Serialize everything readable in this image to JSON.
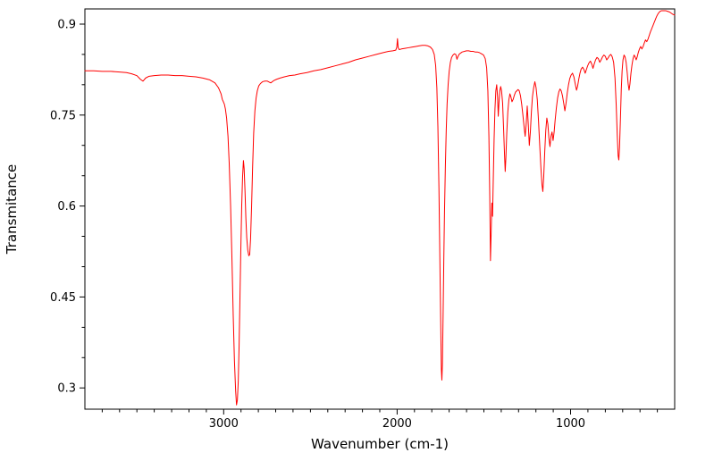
{
  "figure": {
    "background": "#ffffff",
    "axis_color": "#000000"
  },
  "chart_data": {
    "type": "line",
    "title": "",
    "xlabel": "Wavenumber (cm-1)",
    "ylabel": "Transmitance",
    "line_color": "#ff0000",
    "x_reversed": true,
    "xlim": [
      3800,
      400
    ],
    "ylim": [
      0.265,
      0.925
    ],
    "xticks": [
      {
        "value": 3000,
        "label": "3000"
      },
      {
        "value": 2000,
        "label": "2000"
      },
      {
        "value": 1000,
        "label": "1000"
      }
    ],
    "yticks": [
      {
        "value": 0.3,
        "label": "0.3"
      },
      {
        "value": 0.45,
        "label": "0.45"
      },
      {
        "value": 0.6,
        "label": "0.6"
      },
      {
        "value": 0.75,
        "label": "0.75"
      },
      {
        "value": 0.9,
        "label": "0.9"
      }
    ],
    "xtick_minor_step": 100,
    "ytick_minor_step": 0.05,
    "grid": false,
    "legend": false,
    "points": [
      [
        3800,
        0.823
      ],
      [
        3750,
        0.823
      ],
      [
        3700,
        0.822
      ],
      [
        3650,
        0.822
      ],
      [
        3600,
        0.821
      ],
      [
        3560,
        0.82
      ],
      [
        3530,
        0.818
      ],
      [
        3500,
        0.815
      ],
      [
        3480,
        0.809
      ],
      [
        3465,
        0.806
      ],
      [
        3450,
        0.811
      ],
      [
        3430,
        0.814
      ],
      [
        3400,
        0.815
      ],
      [
        3360,
        0.816
      ],
      [
        3320,
        0.816
      ],
      [
        3280,
        0.815
      ],
      [
        3240,
        0.815
      ],
      [
        3200,
        0.814
      ],
      [
        3160,
        0.813
      ],
      [
        3120,
        0.811
      ],
      [
        3080,
        0.808
      ],
      [
        3050,
        0.803
      ],
      [
        3030,
        0.795
      ],
      [
        3015,
        0.785
      ],
      [
        3008,
        0.776
      ],
      [
        3002,
        0.772
      ],
      [
        2996,
        0.768
      ],
      [
        2990,
        0.76
      ],
      [
        2983,
        0.745
      ],
      [
        2975,
        0.715
      ],
      [
        2968,
        0.67
      ],
      [
        2960,
        0.6
      ],
      [
        2952,
        0.51
      ],
      [
        2945,
        0.42
      ],
      [
        2938,
        0.345
      ],
      [
        2931,
        0.295
      ],
      [
        2926,
        0.272
      ],
      [
        2921,
        0.28
      ],
      [
        2916,
        0.31
      ],
      [
        2911,
        0.37
      ],
      [
        2906,
        0.45
      ],
      [
        2901,
        0.53
      ],
      [
        2896,
        0.6
      ],
      [
        2891,
        0.648
      ],
      [
        2886,
        0.675
      ],
      [
        2882,
        0.662
      ],
      [
        2877,
        0.625
      ],
      [
        2872,
        0.58
      ],
      [
        2867,
        0.548
      ],
      [
        2861,
        0.527
      ],
      [
        2855,
        0.518
      ],
      [
        2850,
        0.52
      ],
      [
        2845,
        0.545
      ],
      [
        2839,
        0.6
      ],
      [
        2833,
        0.665
      ],
      [
        2827,
        0.72
      ],
      [
        2820,
        0.757
      ],
      [
        2813,
        0.778
      ],
      [
        2806,
        0.79
      ],
      [
        2798,
        0.798
      ],
      [
        2788,
        0.802
      ],
      [
        2776,
        0.805
      ],
      [
        2762,
        0.806
      ],
      [
        2748,
        0.806
      ],
      [
        2735,
        0.804
      ],
      [
        2728,
        0.803
      ],
      [
        2720,
        0.805
      ],
      [
        2710,
        0.807
      ],
      [
        2695,
        0.809
      ],
      [
        2675,
        0.811
      ],
      [
        2650,
        0.813
      ],
      [
        2620,
        0.815
      ],
      [
        2590,
        0.816
      ],
      [
        2560,
        0.818
      ],
      [
        2520,
        0.82
      ],
      [
        2480,
        0.823
      ],
      [
        2440,
        0.825
      ],
      [
        2400,
        0.828
      ],
      [
        2360,
        0.831
      ],
      [
        2320,
        0.834
      ],
      [
        2280,
        0.837
      ],
      [
        2240,
        0.841
      ],
      [
        2200,
        0.844
      ],
      [
        2160,
        0.847
      ],
      [
        2120,
        0.85
      ],
      [
        2080,
        0.853
      ],
      [
        2050,
        0.855
      ],
      [
        2025,
        0.856
      ],
      [
        2008,
        0.857
      ],
      [
        2002,
        0.862
      ],
      [
        1998,
        0.876
      ],
      [
        1994,
        0.861
      ],
      [
        1988,
        0.858
      ],
      [
        1975,
        0.859
      ],
      [
        1955,
        0.86
      ],
      [
        1935,
        0.861
      ],
      [
        1915,
        0.862
      ],
      [
        1895,
        0.863
      ],
      [
        1875,
        0.864
      ],
      [
        1855,
        0.865
      ],
      [
        1838,
        0.865
      ],
      [
        1822,
        0.864
      ],
      [
        1808,
        0.862
      ],
      [
        1796,
        0.858
      ],
      [
        1786,
        0.85
      ],
      [
        1778,
        0.832
      ],
      [
        1771,
        0.795
      ],
      [
        1765,
        0.73
      ],
      [
        1759,
        0.63
      ],
      [
        1754,
        0.52
      ],
      [
        1749,
        0.41
      ],
      [
        1745,
        0.33
      ],
      [
        1742,
        0.313
      ],
      [
        1739,
        0.34
      ],
      [
        1735,
        0.42
      ],
      [
        1731,
        0.51
      ],
      [
        1727,
        0.59
      ],
      [
        1722,
        0.665
      ],
      [
        1717,
        0.725
      ],
      [
        1712,
        0.768
      ],
      [
        1706,
        0.8
      ],
      [
        1700,
        0.822
      ],
      [
        1693,
        0.837
      ],
      [
        1686,
        0.845
      ],
      [
        1678,
        0.849
      ],
      [
        1670,
        0.851
      ],
      [
        1662,
        0.85
      ],
      [
        1655,
        0.842
      ],
      [
        1650,
        0.846
      ],
      [
        1643,
        0.85
      ],
      [
        1635,
        0.852
      ],
      [
        1625,
        0.854
      ],
      [
        1612,
        0.855
      ],
      [
        1600,
        0.856
      ],
      [
        1588,
        0.856
      ],
      [
        1575,
        0.855
      ],
      [
        1562,
        0.855
      ],
      [
        1550,
        0.854
      ],
      [
        1538,
        0.854
      ],
      [
        1526,
        0.853
      ],
      [
        1514,
        0.851
      ],
      [
        1502,
        0.849
      ],
      [
        1492,
        0.843
      ],
      [
        1484,
        0.828
      ],
      [
        1477,
        0.79
      ],
      [
        1471,
        0.715
      ],
      [
        1466,
        0.615
      ],
      [
        1462,
        0.51
      ],
      [
        1458,
        0.555
      ],
      [
        1454,
        0.605
      ],
      [
        1450,
        0.583
      ],
      [
        1446,
        0.64
      ],
      [
        1441,
        0.71
      ],
      [
        1436,
        0.76
      ],
      [
        1431,
        0.79
      ],
      [
        1426,
        0.8
      ],
      [
        1421,
        0.78
      ],
      [
        1417,
        0.748
      ],
      [
        1413,
        0.77
      ],
      [
        1408,
        0.79
      ],
      [
        1403,
        0.797
      ],
      [
        1398,
        0.79
      ],
      [
        1392,
        0.77
      ],
      [
        1386,
        0.725
      ],
      [
        1381,
        0.685
      ],
      [
        1377,
        0.657
      ],
      [
        1373,
        0.68
      ],
      [
        1368,
        0.72
      ],
      [
        1362,
        0.755
      ],
      [
        1356,
        0.775
      ],
      [
        1350,
        0.785
      ],
      [
        1344,
        0.78
      ],
      [
        1338,
        0.772
      ],
      [
        1331,
        0.776
      ],
      [
        1324,
        0.783
      ],
      [
        1317,
        0.788
      ],
      [
        1310,
        0.79
      ],
      [
        1303,
        0.792
      ],
      [
        1296,
        0.79
      ],
      [
        1289,
        0.782
      ],
      [
        1282,
        0.768
      ],
      [
        1275,
        0.75
      ],
      [
        1268,
        0.73
      ],
      [
        1262,
        0.715
      ],
      [
        1256,
        0.735
      ],
      [
        1250,
        0.765
      ],
      [
        1244,
        0.735
      ],
      [
        1238,
        0.7
      ],
      [
        1232,
        0.722
      ],
      [
        1226,
        0.755
      ],
      [
        1220,
        0.78
      ],
      [
        1213,
        0.795
      ],
      [
        1206,
        0.805
      ],
      [
        1199,
        0.795
      ],
      [
        1192,
        0.775
      ],
      [
        1185,
        0.74
      ],
      [
        1178,
        0.7
      ],
      [
        1171,
        0.662
      ],
      [
        1165,
        0.635
      ],
      [
        1160,
        0.624
      ],
      [
        1155,
        0.648
      ],
      [
        1149,
        0.69
      ],
      [
        1143,
        0.725
      ],
      [
        1137,
        0.745
      ],
      [
        1131,
        0.735
      ],
      [
        1125,
        0.712
      ],
      [
        1119,
        0.698
      ],
      [
        1113,
        0.715
      ],
      [
        1107,
        0.722
      ],
      [
        1101,
        0.708
      ],
      [
        1095,
        0.722
      ],
      [
        1089,
        0.742
      ],
      [
        1082,
        0.762
      ],
      [
        1075,
        0.778
      ],
      [
        1068,
        0.788
      ],
      [
        1061,
        0.793
      ],
      [
        1054,
        0.79
      ],
      [
        1047,
        0.782
      ],
      [
        1040,
        0.77
      ],
      [
        1033,
        0.757
      ],
      [
        1026,
        0.77
      ],
      [
        1019,
        0.787
      ],
      [
        1012,
        0.8
      ],
      [
        1005,
        0.81
      ],
      [
        997,
        0.816
      ],
      [
        989,
        0.819
      ],
      [
        981,
        0.813
      ],
      [
        973,
        0.801
      ],
      [
        966,
        0.791
      ],
      [
        960,
        0.797
      ],
      [
        953,
        0.809
      ],
      [
        946,
        0.819
      ],
      [
        939,
        0.826
      ],
      [
        931,
        0.829
      ],
      [
        923,
        0.825
      ],
      [
        916,
        0.819
      ],
      [
        909,
        0.825
      ],
      [
        902,
        0.831
      ],
      [
        894,
        0.836
      ],
      [
        886,
        0.839
      ],
      [
        878,
        0.834
      ],
      [
        871,
        0.827
      ],
      [
        864,
        0.834
      ],
      [
        856,
        0.841
      ],
      [
        848,
        0.845
      ],
      [
        840,
        0.843
      ],
      [
        832,
        0.837
      ],
      [
        824,
        0.841
      ],
      [
        816,
        0.846
      ],
      [
        808,
        0.849
      ],
      [
        800,
        0.847
      ],
      [
        792,
        0.841
      ],
      [
        784,
        0.844
      ],
      [
        776,
        0.848
      ],
      [
        768,
        0.85
      ],
      [
        760,
        0.846
      ],
      [
        752,
        0.837
      ],
      [
        744,
        0.811
      ],
      [
        737,
        0.766
      ],
      [
        731,
        0.716
      ],
      [
        726,
        0.683
      ],
      [
        722,
        0.676
      ],
      [
        718,
        0.696
      ],
      [
        713,
        0.741
      ],
      [
        708,
        0.791
      ],
      [
        703,
        0.823
      ],
      [
        698,
        0.841
      ],
      [
        692,
        0.849
      ],
      [
        686,
        0.846
      ],
      [
        680,
        0.837
      ],
      [
        674,
        0.821
      ],
      [
        668,
        0.801
      ],
      [
        663,
        0.791
      ],
      [
        658,
        0.801
      ],
      [
        652,
        0.819
      ],
      [
        646,
        0.833
      ],
      [
        640,
        0.843
      ],
      [
        634,
        0.849
      ],
      [
        628,
        0.846
      ],
      [
        622,
        0.841
      ],
      [
        616,
        0.846
      ],
      [
        610,
        0.853
      ],
      [
        603,
        0.859
      ],
      [
        596,
        0.863
      ],
      [
        589,
        0.859
      ],
      [
        582,
        0.863
      ],
      [
        575,
        0.869
      ],
      [
        568,
        0.874
      ],
      [
        561,
        0.871
      ],
      [
        554,
        0.875
      ],
      [
        547,
        0.881
      ],
      [
        540,
        0.887
      ],
      [
        533,
        0.892
      ],
      [
        526,
        0.897
      ],
      [
        519,
        0.902
      ],
      [
        512,
        0.907
      ],
      [
        505,
        0.912
      ],
      [
        498,
        0.916
      ],
      [
        491,
        0.919
      ],
      [
        484,
        0.921
      ],
      [
        477,
        0.922
      ],
      [
        470,
        0.922
      ],
      [
        463,
        0.922
      ],
      [
        456,
        0.922
      ],
      [
        450,
        0.922
      ],
      [
        440,
        0.921
      ],
      [
        430,
        0.92
      ],
      [
        420,
        0.918
      ],
      [
        410,
        0.916
      ],
      [
        400,
        0.915
      ]
    ]
  }
}
